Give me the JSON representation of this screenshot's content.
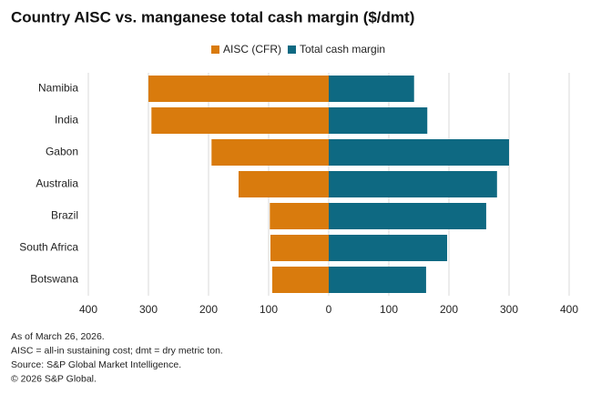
{
  "chart_data": {
    "type": "diverging-bar",
    "title": "Country AISC vs. manganese total cash margin ($/dmt)",
    "categories": [
      "Namibia",
      "India",
      "Gabon",
      "Australia",
      "Brazil",
      "South Africa",
      "Botswana"
    ],
    "series": [
      {
        "name": "AISC (CFR)",
        "color": "#d97b0d",
        "values": [
          -300,
          -295,
          -195,
          -150,
          -98,
          -97,
          -94
        ]
      },
      {
        "name": "Total cash margin",
        "color": "#0e6982",
        "values": [
          142,
          164,
          300,
          280,
          262,
          197,
          162
        ]
      }
    ],
    "xlim": [
      -400,
      400
    ],
    "xticks": [
      {
        "value": -400,
        "label": "400"
      },
      {
        "value": -300,
        "label": "300"
      },
      {
        "value": -200,
        "label": "200"
      },
      {
        "value": -100,
        "label": "100"
      },
      0,
      100,
      200,
      300,
      400
    ],
    "grid": true,
    "legend": "top",
    "notes": [
      "As of March 26, 2026.",
      "AISC = all-in sustaining cost; dmt = dry metric ton.",
      "Source: S&P Global Market Intelligence.",
      "© 2026 S&P Global."
    ]
  }
}
